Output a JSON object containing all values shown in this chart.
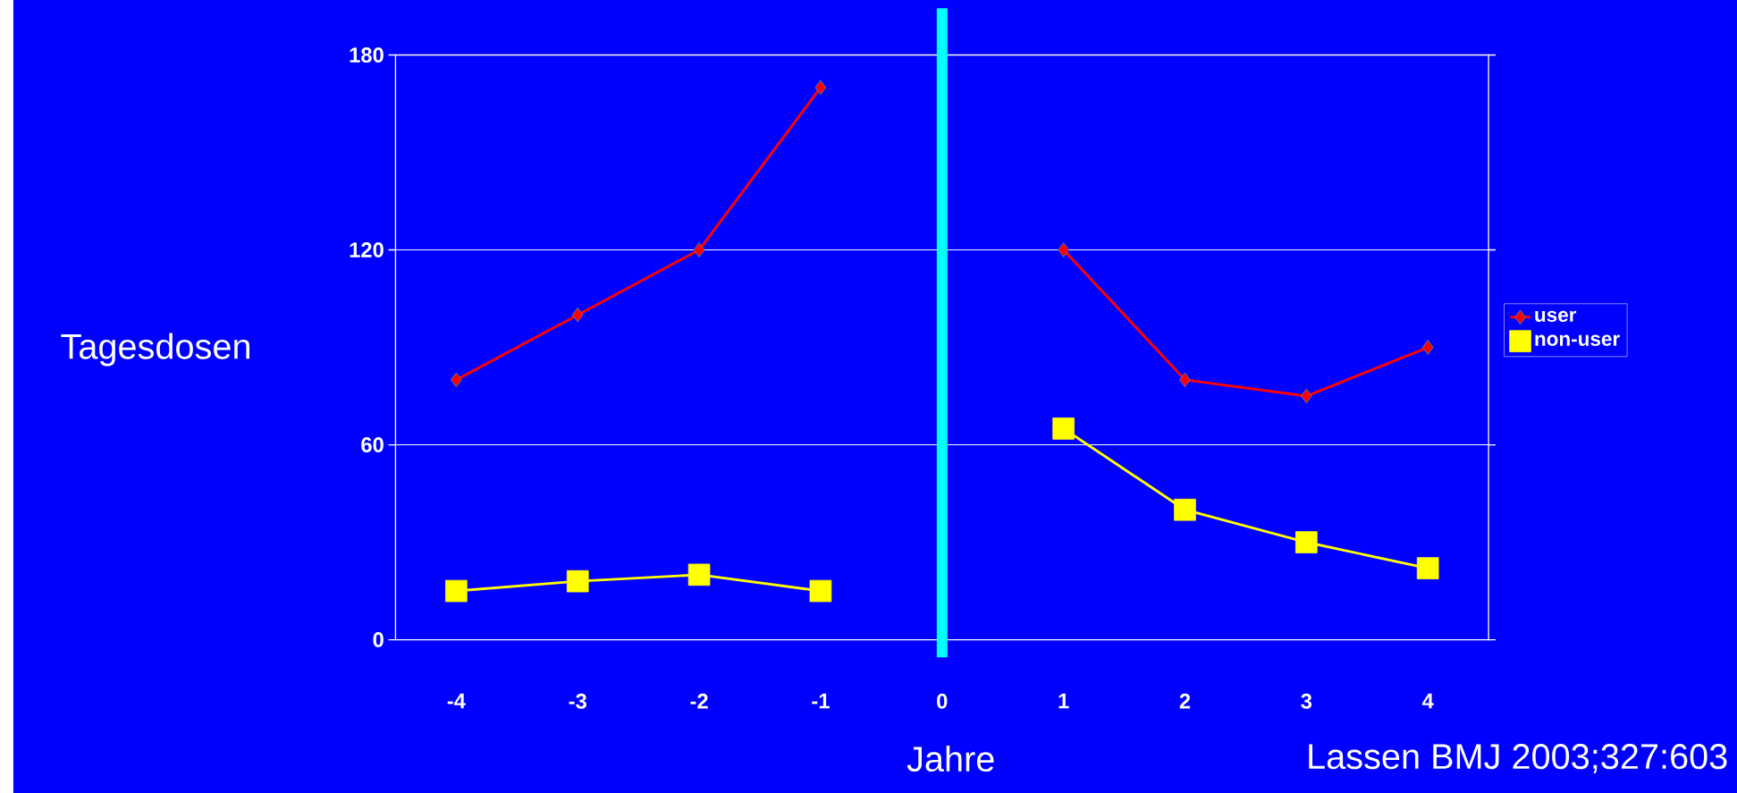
{
  "chart_data": {
    "type": "line",
    "xlabel": "Jahre",
    "ylabel": "Tagesdosen",
    "categories": [
      "-4",
      "-3",
      "-2",
      "-1",
      "0",
      "1",
      "2",
      "3",
      "4"
    ],
    "series": [
      {
        "name": "user",
        "color": "#ff0000",
        "marker": "diamond",
        "values": [
          80,
          100,
          120,
          170,
          null,
          120,
          80,
          75,
          90
        ]
      },
      {
        "name": "non-user",
        "color": "#ffff00",
        "marker": "square",
        "values": [
          15,
          18,
          20,
          15,
          null,
          65,
          40,
          30,
          22
        ]
      }
    ],
    "ylim": [
      0,
      180
    ],
    "yticks": [
      0,
      60,
      120,
      180
    ],
    "grid": "y",
    "legend": "right",
    "ref_lines": [
      {
        "axis": "x",
        "value": "0",
        "color": "#00ffff"
      }
    ],
    "annotations": [
      "Lassen BMJ 2003;327:603"
    ]
  }
}
